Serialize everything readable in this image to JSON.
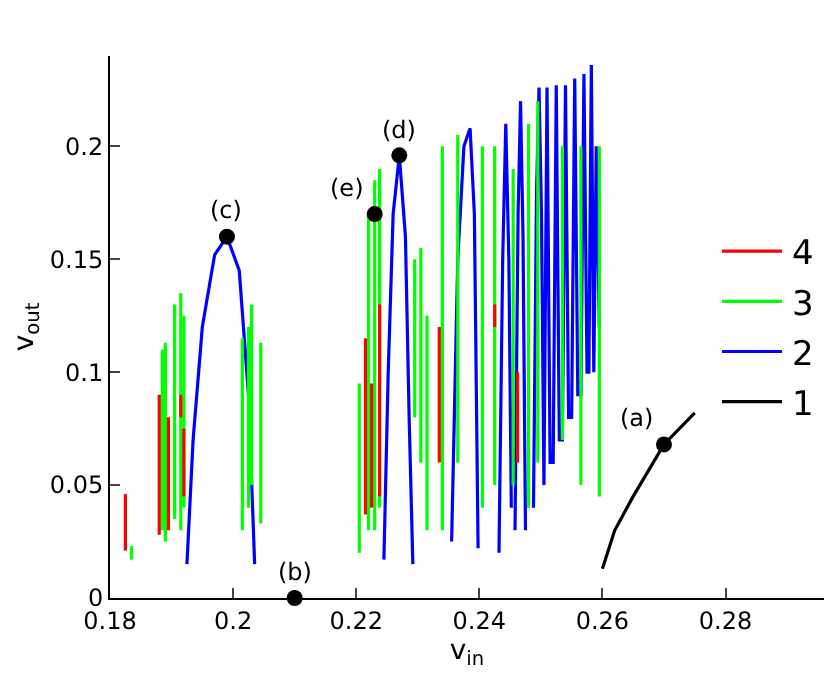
{
  "chart_data": {
    "type": "line",
    "xlabel": "v$_{in}$",
    "ylabel": "v$_{out}$",
    "xlim": [
      0.18,
      0.296
    ],
    "xticks": [
      0.18,
      0.2,
      0.22,
      0.24,
      0.26,
      0.28
    ],
    "ylim": [
      0,
      0.24
    ],
    "yticks": [
      0,
      0.05,
      0.1,
      0.15,
      0.2
    ],
    "grid": false,
    "legend": "right",
    "line_style": "solid",
    "series": [
      {
        "name": "1",
        "color": "#000000",
        "x": [
          0.26,
          0.262,
          0.265,
          0.27,
          0.275
        ],
        "values": [
          0.013,
          0.03,
          0.045,
          0.068,
          0.082
        ]
      },
      {
        "name": "2",
        "color": "#0000ff",
        "x": [
          0.1925,
          0.1935,
          0.195,
          0.197,
          0.199,
          0.201,
          0.2025,
          0.2035,
          null,
          0.2245,
          0.2252,
          0.226,
          0.227,
          0.228,
          0.2286,
          0.2292,
          null,
          0.2355,
          0.2365,
          0.2375,
          0.2385,
          0.2392,
          0.2398,
          null,
          0.2432,
          0.2438,
          0.2443,
          0.2448,
          0.2452,
          null,
          0.2458,
          0.2463,
          0.2467,
          0.2471,
          0.2475,
          null,
          0.2488,
          0.2493,
          0.2497,
          0.2501,
          0.2505,
          0.251,
          0.2515,
          0.252,
          0.2525,
          0.253,
          0.2535,
          0.254,
          0.2545,
          0.255,
          0.2555,
          0.256,
          0.2565,
          0.257,
          0.2575,
          0.2578,
          0.2582,
          0.2586,
          0.259,
          0.2595
        ],
        "values": [
          0.015,
          0.07,
          0.12,
          0.152,
          0.16,
          0.145,
          0.09,
          0.015,
          null,
          0.017,
          0.1,
          0.17,
          0.196,
          0.16,
          0.08,
          0.015,
          null,
          0.025,
          0.15,
          0.2,
          0.208,
          0.17,
          0.022,
          null,
          0.02,
          0.15,
          0.21,
          0.15,
          0.04,
          null,
          0.03,
          0.17,
          0.22,
          0.16,
          0.03,
          null,
          0.04,
          0.18,
          0.226,
          0.17,
          0.05,
          0.226,
          0.06,
          0.06,
          0.227,
          0.07,
          0.07,
          0.227,
          0.08,
          0.08,
          0.23,
          0.09,
          0.09,
          0.232,
          0.1,
          0.1,
          0.236,
          0.1,
          0.2,
          0.12
        ]
      },
      {
        "name": "3",
        "color": "#00ff00",
        "x": [
          0.1835,
          0.1835,
          null,
          0.1885,
          0.1885,
          null,
          0.189,
          0.189,
          null,
          0.1905,
          0.1905,
          null,
          0.1915,
          0.1915,
          null,
          0.192,
          0.192,
          null,
          0.2015,
          0.2015,
          null,
          0.2025,
          0.2025,
          null,
          0.203,
          0.203,
          null,
          0.2045,
          0.2045,
          null,
          0.2205,
          0.2205,
          null,
          0.222,
          0.222,
          null,
          0.223,
          0.223,
          null,
          0.2238,
          0.2238,
          null,
          0.2295,
          0.2295,
          null,
          0.2305,
          0.2305,
          null,
          0.2315,
          0.2315,
          null,
          0.234,
          0.234,
          null,
          0.2365,
          0.2365,
          null,
          0.2405,
          0.2405,
          null,
          0.2425,
          0.2425,
          null,
          0.2455,
          0.2455,
          null,
          0.248,
          0.248,
          null,
          0.2495,
          0.2495,
          null,
          0.2535,
          0.2535,
          null,
          0.2565,
          0.2565,
          null,
          0.2595,
          0.2595
        ],
        "values": [
          0.017,
          0.023,
          null,
          0.03,
          0.11,
          null,
          0.025,
          0.113,
          null,
          0.035,
          0.13,
          null,
          0.03,
          0.135,
          null,
          0.04,
          0.125,
          null,
          0.03,
          0.115,
          null,
          0.04,
          0.12,
          null,
          0.05,
          0.13,
          null,
          0.033,
          0.113,
          null,
          0.02,
          0.095,
          null,
          0.03,
          0.17,
          null,
          0.03,
          0.185,
          null,
          0.04,
          0.19,
          null,
          0.08,
          0.15,
          null,
          0.06,
          0.155,
          null,
          0.03,
          0.125,
          null,
          0.03,
          0.2,
          null,
          0.06,
          0.205,
          null,
          0.04,
          0.2,
          null,
          0.05,
          0.2,
          null,
          0.05,
          0.19,
          null,
          0.04,
          0.21,
          null,
          0.06,
          0.22,
          null,
          0.07,
          0.2,
          null,
          0.05,
          0.2,
          null,
          0.045,
          0.2
        ]
      },
      {
        "name": "4",
        "color": "#ff0000",
        "x": [
          0.1825,
          0.1825,
          null,
          0.188,
          0.188,
          null,
          0.1895,
          0.1895,
          null,
          0.1915,
          0.1915,
          null,
          0.192,
          0.192,
          null,
          0.2215,
          0.2215,
          null,
          0.2225,
          0.2225,
          null,
          0.2238,
          0.2238,
          null,
          0.2335,
          0.2335,
          null,
          0.2425,
          0.2425,
          null,
          0.2462,
          0.2462
        ],
        "values": [
          0.021,
          0.046,
          null,
          0.028,
          0.09,
          null,
          0.03,
          0.08,
          null,
          0.08,
          0.09,
          null,
          0.045,
          0.075,
          null,
          0.037,
          0.115,
          null,
          0.04,
          0.095,
          null,
          0.045,
          0.13,
          null,
          0.06,
          0.12,
          null,
          0.12,
          0.13,
          null,
          0.06,
          0.1
        ]
      },
      {
        "color": "#000000",
        "type": "scatter",
        "marker": "circle",
        "x": [
          0.27,
          0.21,
          0.199,
          0.227,
          0.223
        ],
        "values": [
          0.068,
          0,
          0.16,
          0.196,
          0.17
        ]
      }
    ],
    "annotations": [
      {
        "text": "(a)",
        "x": 0.27,
        "y": 0.068
      },
      {
        "text": "(b)",
        "x": 0.21,
        "y": 0
      },
      {
        "text": "(c)",
        "x": 0.199,
        "y": 0.16
      },
      {
        "text": "(d)",
        "x": 0.227,
        "y": 0.196
      },
      {
        "text": "(e)",
        "x": 0.223,
        "y": 0.17
      }
    ]
  }
}
